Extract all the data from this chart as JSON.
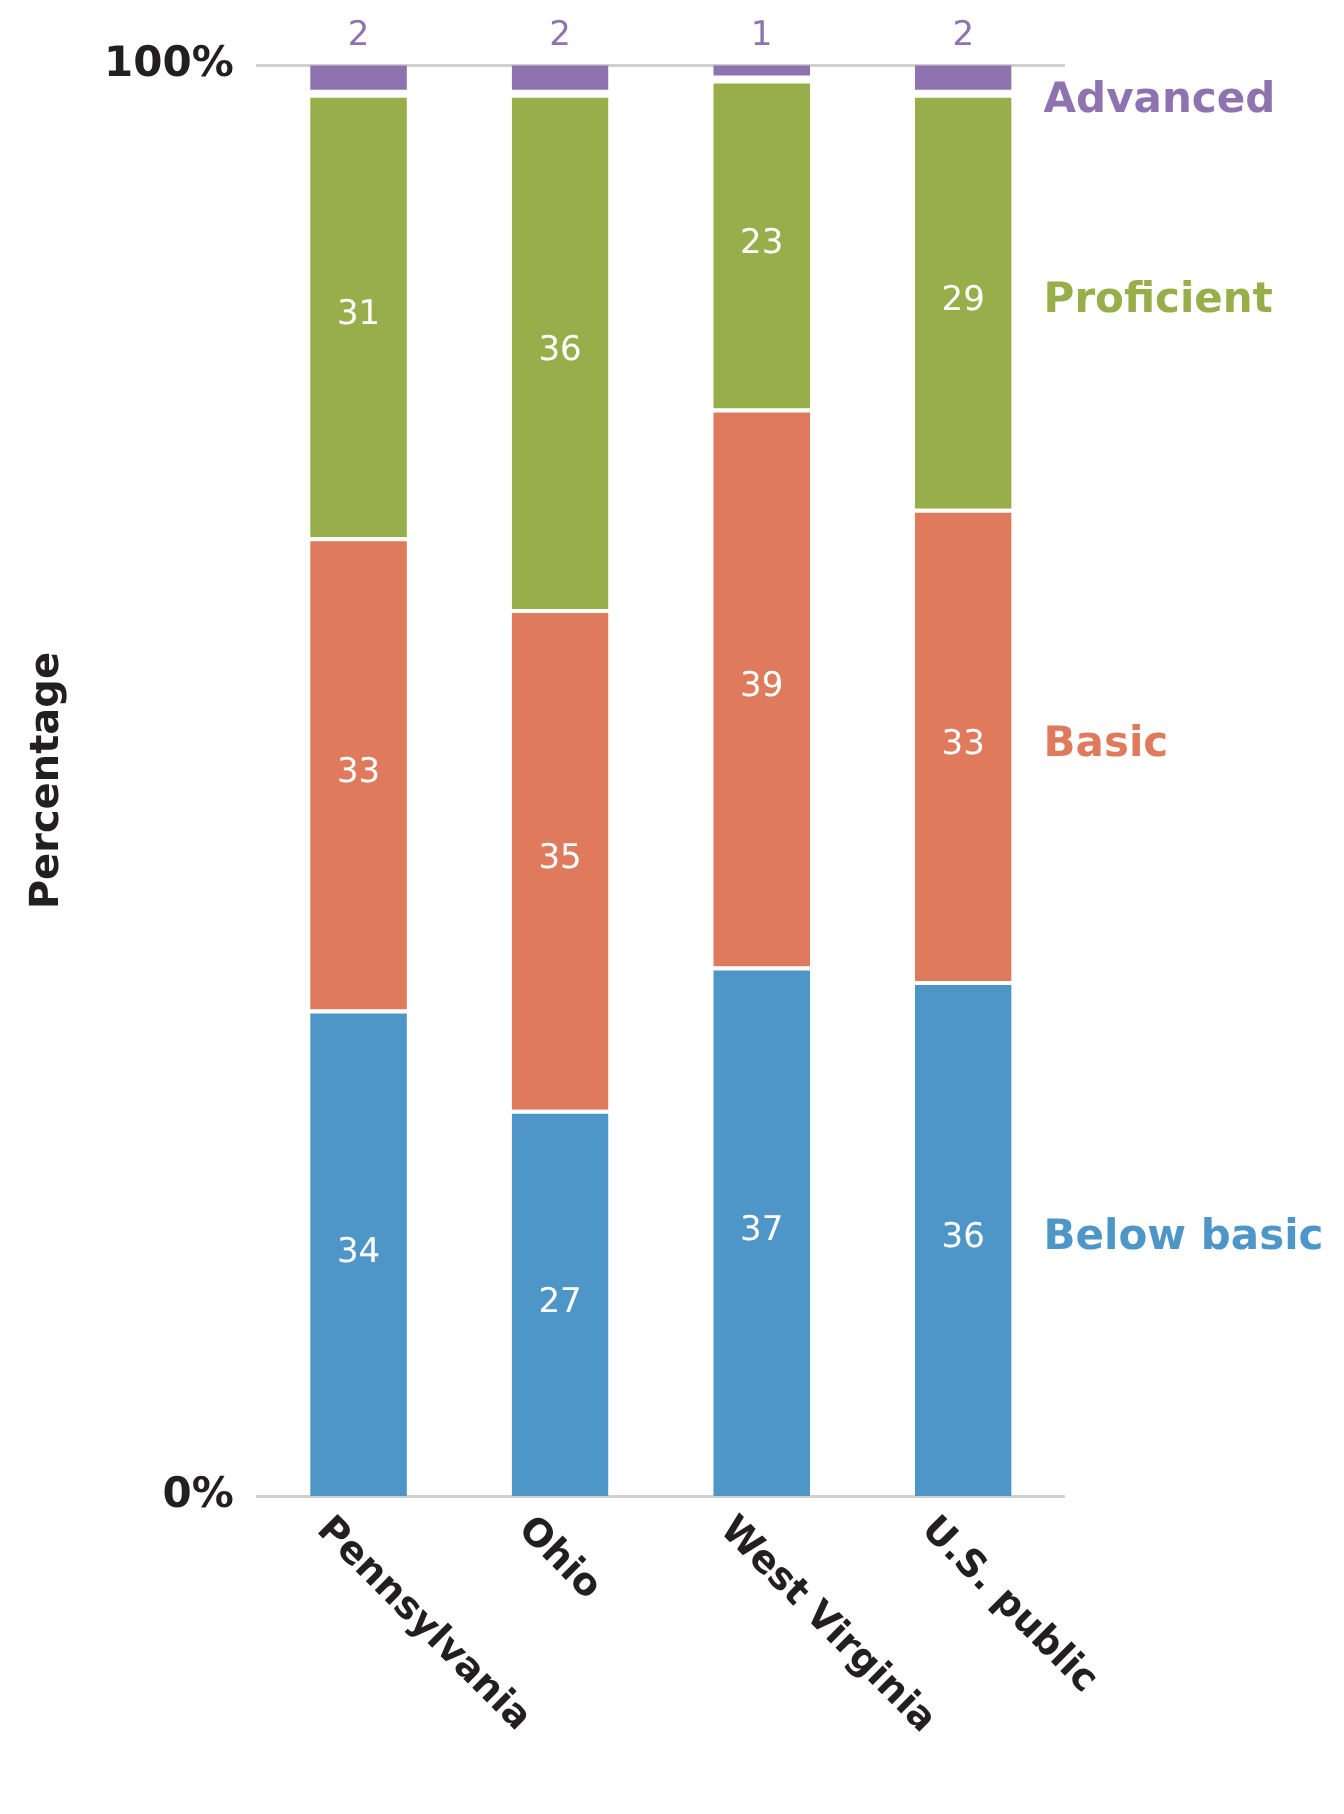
{
  "chart_data": {
    "type": "bar",
    "stacked": true,
    "ylabel": "Percentage",
    "categories": [
      "Pennsylvania",
      "Ohio",
      "West Virginia",
      "U.S. public"
    ],
    "series": [
      {
        "name": "Below basic",
        "color": "#4f96c8",
        "values": [
          34,
          27,
          37,
          36
        ]
      },
      {
        "name": "Basic",
        "color": "#df7a5c",
        "values": [
          33,
          35,
          39,
          33
        ]
      },
      {
        "name": "Proficient",
        "color": "#97ae4b",
        "values": [
          31,
          36,
          23,
          29
        ]
      },
      {
        "name": "Advanced",
        "color": "#8f72b0",
        "values": [
          2,
          2,
          1,
          2
        ]
      }
    ],
    "ylim": [
      0,
      100
    ],
    "yticks": [
      {
        "value": 0,
        "label": "0%"
      },
      {
        "value": 100,
        "label": "100%"
      }
    ],
    "grid": false,
    "legend": false,
    "data_labels": true
  }
}
